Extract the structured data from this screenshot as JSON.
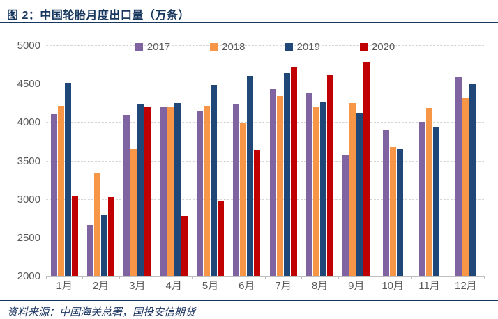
{
  "header": {
    "title": "图 2：中国轮胎月度出口量（万条）"
  },
  "footer": {
    "source": "资料来源：中国海关总署，国投安信期货"
  },
  "colors": {
    "title_text": "#17375E",
    "axis_text": "#595959",
    "gridline": "#D6D6D6",
    "axis_line": "#BFBFBF",
    "series_2017": "#8064A2",
    "series_2018": "#F79646",
    "series_2019": "#1F4879",
    "series_2020": "#C00000"
  },
  "chart_data": {
    "type": "bar",
    "title": "中国轮胎月度出口量（万条）",
    "xlabel": "",
    "ylabel": "",
    "ylim": [
      2000,
      5000
    ],
    "yticks": [
      2000,
      2500,
      3000,
      3500,
      4000,
      4500,
      5000
    ],
    "grid": "horizontal-dashed",
    "legend_position": "top",
    "categories": [
      "1月",
      "2月",
      "3月",
      "4月",
      "5月",
      "6月",
      "7月",
      "8月",
      "9月",
      "10月",
      "11月",
      "12月"
    ],
    "series": [
      {
        "name": "2017",
        "color": "#8064A2",
        "values": [
          4100,
          2660,
          4090,
          4200,
          4140,
          4240,
          4430,
          4380,
          3580,
          3890,
          4000,
          4580
        ]
      },
      {
        "name": "2018",
        "color": "#F79646",
        "values": [
          4210,
          3340,
          3650,
          4200,
          4210,
          3990,
          4340,
          4190,
          4250,
          3680,
          4180,
          4310
        ]
      },
      {
        "name": "2019",
        "color": "#1F4879",
        "values": [
          4510,
          2800,
          4230,
          4250,
          4480,
          4600,
          4640,
          4270,
          4120,
          3650,
          3930,
          4500
        ]
      },
      {
        "name": "2020",
        "color": "#C00000",
        "values": [
          3030,
          3020,
          4190,
          2780,
          2970,
          3630,
          4720,
          4620,
          4780,
          null,
          null,
          null
        ]
      }
    ]
  }
}
